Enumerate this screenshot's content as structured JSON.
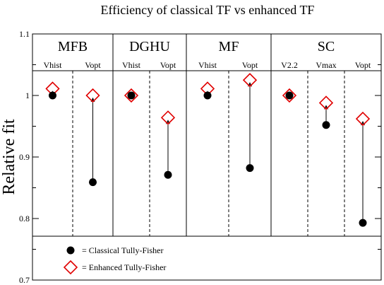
{
  "chart_data": {
    "type": "scatter",
    "title": "Efficiency of classical TF vs enhanced TF",
    "xlabel": "",
    "ylabel": "Relative fit",
    "ylim": [
      0.7,
      1.1
    ],
    "yticks": [
      0.7,
      0.8,
      0.9,
      1.0,
      1.1
    ],
    "ytick_labels": [
      "0.7",
      "0.8",
      "0.9",
      "1",
      "1.1"
    ],
    "grid": false,
    "groups": [
      {
        "name": "MFB",
        "subgroups": [
          "Vhist",
          "Vopt"
        ]
      },
      {
        "name": "DGHU",
        "subgroups": [
          "Vhist",
          "Vopt"
        ]
      },
      {
        "name": "MF",
        "subgroups": [
          "Vhist",
          "Vopt"
        ]
      },
      {
        "name": "SC",
        "subgroups": [
          "V2.2",
          "Vmax",
          "Vopt"
        ]
      }
    ],
    "categories": [
      "MFB Vhist",
      "MFB Vopt",
      "DGHU Vhist",
      "DGHU Vopt",
      "MF Vhist",
      "MF Vopt",
      "SC V2.2",
      "SC Vmax",
      "SC Vopt"
    ],
    "series": [
      {
        "name": "Classical Tully-Fisher",
        "marker": "filled-circle",
        "color": "#000000",
        "values": [
          1.0,
          0.859,
          1.0,
          0.871,
          1.0,
          0.882,
          1.0,
          0.952,
          0.793
        ]
      },
      {
        "name": "Enhanced Tully-Fisher",
        "marker": "open-diamond",
        "color": "#e00000",
        "values": [
          1.011,
          1.0,
          1.0,
          0.964,
          1.011,
          1.025,
          1.0,
          0.988,
          0.962
        ]
      }
    ],
    "legend_position": "bottom-left"
  }
}
